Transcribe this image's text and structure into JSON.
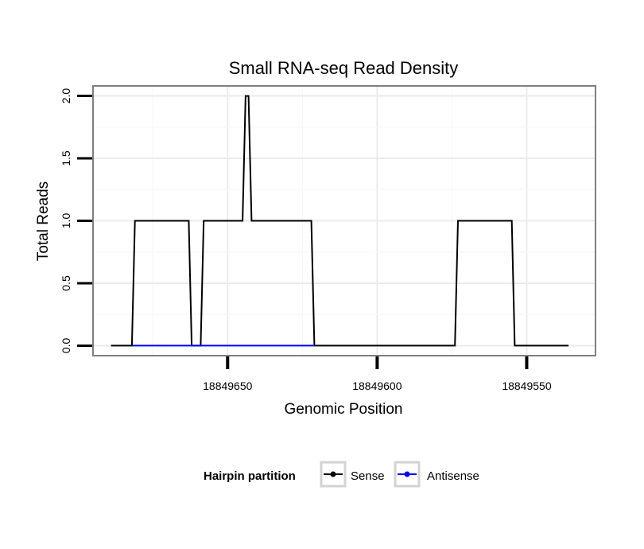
{
  "chart_data": {
    "type": "line",
    "title": "Small RNA-seq Read Density",
    "xlabel": "Genomic Position",
    "ylabel": "Total Reads",
    "x_reversed": true,
    "xlim": [
      18849695,
      18849527
    ],
    "ylim": [
      -0.08,
      2.08
    ],
    "x_ticks": [
      18849650,
      18849600,
      18849550
    ],
    "x_tick_labels": [
      "18849650",
      "18849600",
      "18849550"
    ],
    "y_ticks": [
      0,
      0.5,
      1,
      1.5,
      2
    ],
    "y_tick_labels": [
      "0.0",
      "0.5",
      "1.0",
      "1.5",
      "2.0"
    ],
    "grid": true,
    "legend": {
      "title": "Hairpin partition",
      "position": "bottom",
      "entries": [
        "Sense",
        "Antisense"
      ]
    },
    "series": [
      {
        "name": "Sense",
        "color": "#000000",
        "x": [
          18849689,
          18849682,
          18849681,
          18849663,
          18849662,
          18849659,
          18849658,
          18849645,
          18849644,
          18849643,
          18849642,
          18849622,
          18849621,
          18849574,
          18849573,
          18849555,
          18849554,
          18849536
        ],
        "y": [
          0,
          0,
          1,
          1,
          0,
          0,
          1,
          1,
          2,
          2,
          1,
          1,
          0,
          0,
          1,
          1,
          0,
          0
        ]
      },
      {
        "name": "Antisense",
        "color": "#0000ff",
        "x": [
          18849682,
          18849621
        ],
        "y": [
          0,
          0
        ]
      }
    ]
  }
}
